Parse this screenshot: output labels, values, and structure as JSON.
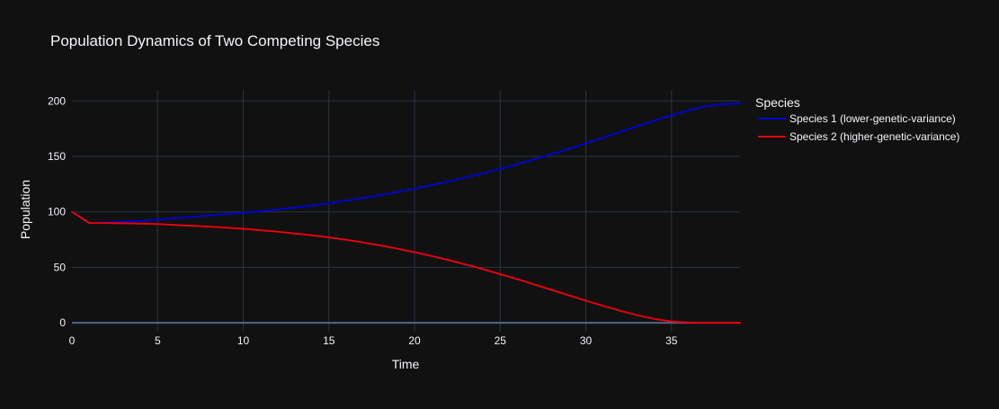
{
  "chart_data": {
    "type": "line",
    "title": "Population Dynamics of Two Competing Species",
    "xlabel": "Time",
    "ylabel": "Population",
    "xlim": [
      0,
      39
    ],
    "ylim": [
      -8,
      210
    ],
    "xticks": [
      0,
      5,
      10,
      15,
      20,
      25,
      30,
      35
    ],
    "yticks": [
      0,
      50,
      100,
      150,
      200
    ],
    "grid": true,
    "legend": {
      "title": "Species",
      "placement": "top-right, outside plot"
    },
    "x": [
      0,
      1,
      2,
      3,
      4,
      5,
      6,
      7,
      8,
      9,
      10,
      11,
      12,
      13,
      14,
      15,
      16,
      17,
      18,
      19,
      20,
      21,
      22,
      23,
      24,
      25,
      26,
      27,
      28,
      29,
      30,
      31,
      32,
      33,
      34,
      35,
      36,
      37,
      38,
      39
    ],
    "series": [
      {
        "name": "Species 1 (lower-genetic-variance)",
        "color": "#0000cd",
        "values": [
          100,
          90,
          90.5,
          91.2,
          92,
          93,
          94.3,
          95.6,
          96.9,
          98.1,
          99.2,
          100.6,
          102.2,
          103.9,
          105.8,
          107.9,
          110.2,
          112.6,
          115.2,
          118,
          121,
          124.2,
          127.6,
          131.2,
          134.9,
          138.9,
          143.1,
          147.5,
          152.1,
          156.9,
          161.9,
          167,
          172.2,
          177.3,
          182.3,
          187.2,
          191.6,
          195.3,
          197.3,
          197.8
        ]
      },
      {
        "name": "Species 2 (higher-genetic-variance)",
        "color": "#e3000f",
        "values": [
          100,
          90,
          90,
          89.7,
          89.4,
          89,
          88.3,
          87.5,
          86.7,
          85.8,
          84.8,
          83.5,
          82.1,
          80.6,
          78.9,
          77,
          74.8,
          72.4,
          69.7,
          66.8,
          63.6,
          60.2,
          56.5,
          52.5,
          48.3,
          43.9,
          39.3,
          34.5,
          29.7,
          24.8,
          20,
          15.3,
          10.9,
          6.8,
          3.5,
          1.1,
          0.3,
          0,
          0,
          0
        ]
      }
    ]
  }
}
